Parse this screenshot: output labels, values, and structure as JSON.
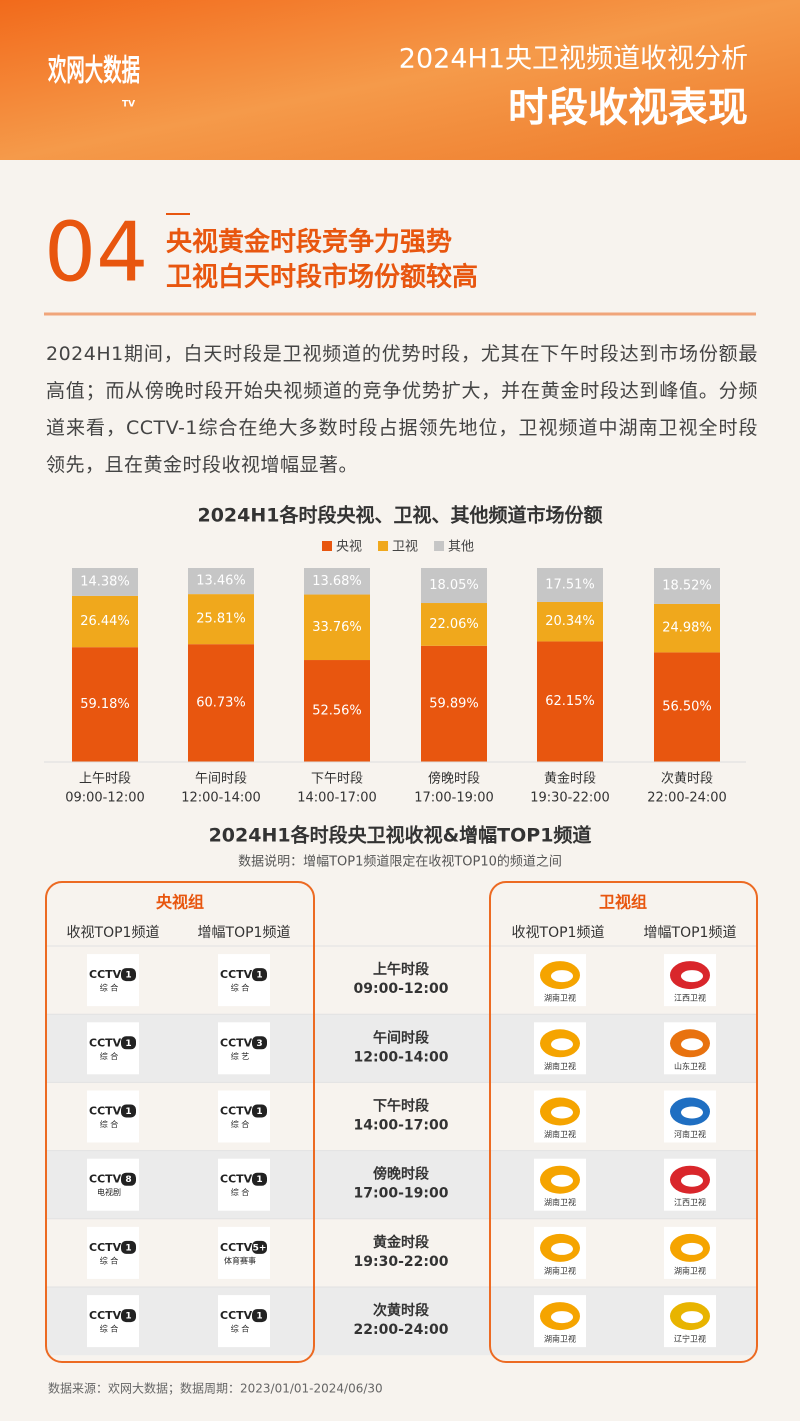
{
  "header": {
    "logo": "欢网大数据",
    "logo_badge": "TV",
    "title": "2024H1央卫视频道收视分析",
    "subtitle": "时段收视表现"
  },
  "section": {
    "number": "04",
    "headline": [
      "央视黄金时段竞争力强势",
      "卫视白天时段市场份额较高"
    ]
  },
  "intro": "2024H1期间，白天时段是卫视频道的优势时段，尤其在下午时段达到市场份额最高值；而从傍晚时段开始央视频道的竞争优势扩大，并在黄金时段达到峰值。分频道来看，CCTV-1综合在绝大多数时段占据领先地位，卫视频道中湖南卫视全时段领先，且在黄金时段收视增幅显著。",
  "chart_data": {
    "type": "stacked-bar",
    "title": "2024H1各时段央视、卫视、其他频道市场份额",
    "categories": [
      [
        "上午时段",
        "09:00-12:00"
      ],
      [
        "午间时段",
        "12:00-14:00"
      ],
      [
        "下午时段",
        "14:00-17:00"
      ],
      [
        "傍晚时段",
        "17:00-19:00"
      ],
      [
        "黄金时段",
        "19:30-22:00"
      ],
      [
        "次黄时段",
        "22:00-24:00"
      ]
    ],
    "series": [
      {
        "name": "央视",
        "color": "#e8560f",
        "values": [
          59.18,
          60.73,
          52.56,
          59.89,
          62.15,
          56.5
        ],
        "value_labels": [
          "59.18%",
          "60.73%",
          "52.56%",
          "59.89%",
          "62.15%",
          "56.50%"
        ]
      },
      {
        "name": "卫视",
        "color": "#f0a81c",
        "values": [
          26.44,
          25.81,
          33.76,
          22.06,
          20.34,
          24.98
        ],
        "value_labels": [
          "26.44%",
          "25.81%",
          "33.76%",
          "22.06%",
          "20.34%",
          "24.98%"
        ]
      },
      {
        "name": "其他",
        "color": "#c6c6c6",
        "values": [
          14.38,
          13.46,
          13.68,
          18.05,
          17.51,
          18.52
        ],
        "value_labels": [
          "14.38%",
          "13.46%",
          "13.68%",
          "18.05%",
          "17.51%",
          "18.52%"
        ]
      }
    ],
    "ylim": [
      0,
      100
    ],
    "legend": "top"
  },
  "table": {
    "title": "2024H1各时段央卫视收视&增幅TOP1频道",
    "note": "数据说明：增幅TOP1频道限定在收视TOP10的频道之间",
    "groups": [
      "央视组",
      "卫视组"
    ],
    "columns": [
      "收视TOP1频道",
      "增幅TOP1频道",
      "收视TOP1频道",
      "增幅TOP1频道"
    ],
    "rows": [
      {
        "slot": "上午时段",
        "time": "09:00-12:00",
        "cctv_view": {
          "logo": "CCTV",
          "num": "1",
          "name": "综 合"
        },
        "cctv_growth": {
          "logo": "CCTV",
          "num": "1",
          "name": "综 合"
        },
        "sat_view": "湖南卫视",
        "sat_growth": "江西卫视"
      },
      {
        "slot": "午间时段",
        "time": "12:00-14:00",
        "cctv_view": {
          "logo": "CCTV",
          "num": "1",
          "name": "综 合"
        },
        "cctv_growth": {
          "logo": "CCTV",
          "num": "3",
          "name": "综 艺"
        },
        "sat_view": "湖南卫视",
        "sat_growth": "山东卫视"
      },
      {
        "slot": "下午时段",
        "time": "14:00-17:00",
        "cctv_view": {
          "logo": "CCTV",
          "num": "1",
          "name": "综 合"
        },
        "cctv_growth": {
          "logo": "CCTV",
          "num": "1",
          "name": "综 合"
        },
        "sat_view": "湖南卫视",
        "sat_growth": "河南卫视"
      },
      {
        "slot": "傍晚时段",
        "time": "17:00-19:00",
        "cctv_view": {
          "logo": "CCTV",
          "num": "8",
          "name": "电视剧"
        },
        "cctv_growth": {
          "logo": "CCTV",
          "num": "1",
          "name": "综 合"
        },
        "sat_view": "湖南卫视",
        "sat_growth": "江西卫视"
      },
      {
        "slot": "黄金时段",
        "time": "19:30-22:00",
        "cctv_view": {
          "logo": "CCTV",
          "num": "1",
          "name": "综 合"
        },
        "cctv_growth": {
          "logo": "CCTV",
          "num": "5+",
          "name": "体育赛事"
        },
        "sat_view": "湖南卫视",
        "sat_growth": "湖南卫视"
      },
      {
        "slot": "次黄时段",
        "time": "22:00-24:00",
        "cctv_view": {
          "logo": "CCTV",
          "num": "1",
          "name": "综 合"
        },
        "cctv_growth": {
          "logo": "CCTV",
          "num": "1",
          "name": "综 合"
        },
        "sat_view": "湖南卫视",
        "sat_growth": "辽宁卫视"
      }
    ]
  },
  "footer": "数据来源：欢网大数据；数据周期：2023/01/01-2024/06/30"
}
